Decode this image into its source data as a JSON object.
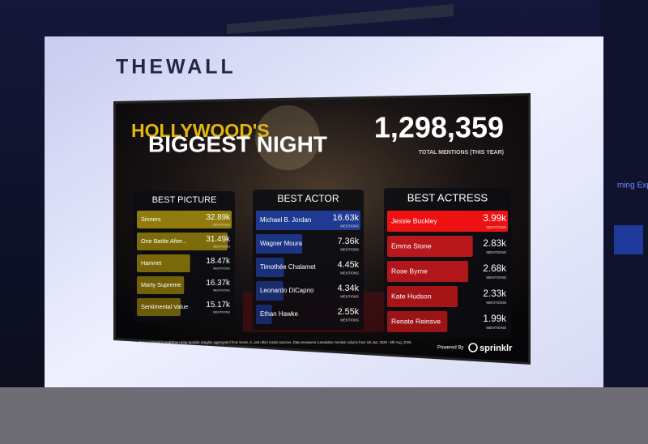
{
  "scene": {
    "wall_logo": "THEWALL",
    "side_sign": "ming Exp",
    "header_line1": "HOLLYWOOD'S",
    "header_line2": "BIGGEST NIGHT",
    "total_mentions": "1,298,359",
    "total_caption": "TOTAL MENTIONS (THIS YEAR)",
    "footnote": "Data captured in real-time using Sprinklr Insights aggregated from News, X, and other media sources. Data measures cumulative mention volume from   1st Jan, 2026 - 6th Aug, 2026",
    "powered_by": "Powered By",
    "brand": "sprinklr"
  },
  "chart_data": [
    {
      "type": "bar",
      "title": "BEST PICTURE",
      "value_caption": "MENTIONS",
      "categories": [
        "Sinners",
        "One Battle After...",
        "Hamnet",
        "Marty Supreme",
        "Sentimental Value"
      ],
      "values": [
        32890,
        31490,
        18470,
        16370,
        15170
      ],
      "value_labels": [
        "32.89k",
        "31.49k",
        "18.47k",
        "16.37k",
        "15.17k"
      ],
      "colors": [
        "#8f7c0c",
        "#7e6c0b",
        "#7a680a",
        "#726109",
        "#6b5a08"
      ]
    },
    {
      "type": "bar",
      "title": "BEST ACTOR",
      "value_caption": "MENTIONS",
      "categories": [
        "Michael B. Jordan",
        "Wagner Moura",
        "Timothée Chalamet",
        "Leonardo DiCaprio",
        "Ethan Hawke"
      ],
      "values": [
        16630,
        7360,
        4450,
        4340,
        2550
      ],
      "value_labels": [
        "16.63k",
        "7.36k",
        "4.45k",
        "4.34k",
        "2.55k"
      ],
      "colors": [
        "#1f3a92",
        "#1c3484",
        "#1a3078",
        "#182c6e",
        "#172966"
      ]
    },
    {
      "type": "bar",
      "title": "BEST ACTRESS",
      "value_caption": "MENTIONS",
      "categories": [
        "Jessie Buckley",
        "Emma Stone",
        "Rose Byrne",
        "Kate Hudson",
        "Renate Reinsve"
      ],
      "values": [
        3990,
        2830,
        2680,
        2330,
        1990
      ],
      "value_labels": [
        "3.99k",
        "2.83k",
        "2.68k",
        "2.33k",
        "1.99k"
      ],
      "colors": [
        "#ee1111",
        "#b8171b",
        "#b0161a",
        "#a51518",
        "#9a1416"
      ]
    }
  ]
}
